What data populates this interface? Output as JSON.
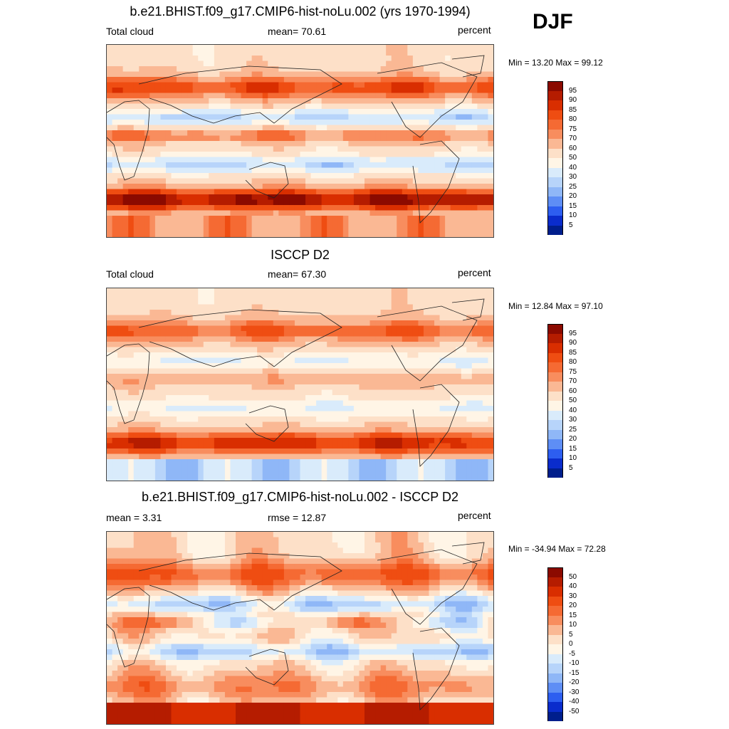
{
  "season": "DJF",
  "panels": [
    {
      "title": "b.e21.BHIST.f09_g17.CMIP6-hist-noLu.002 (yrs 1970-1994)",
      "left_text": "Total cloud",
      "center_text": "mean=  70.61",
      "right_text": "percent",
      "minmax": "Min =  13.20 Max =  99.12",
      "colorbar_labels": [
        "95",
        "90",
        "85",
        "80",
        "75",
        "70",
        "60",
        "50",
        "40",
        "30",
        "25",
        "20",
        "15",
        "10",
        "5"
      ],
      "colorbar_colors": [
        "#8b0a00",
        "#b51c00",
        "#d92e00",
        "#ef4d12",
        "#f56a33",
        "#f88d5e",
        "#fab894",
        "#fde0c8",
        "#fff5e6",
        "#d9ebfb",
        "#b7d4fa",
        "#8fb7f7",
        "#5e8ef5",
        "#2d5ef0",
        "#0a2ccc",
        "#001e8c"
      ],
      "field": "model"
    },
    {
      "title": "ISCCP D2",
      "left_text": "Total cloud",
      "center_text": "mean=  67.30",
      "right_text": "percent",
      "minmax": "Min =  12.84 Max =  97.10",
      "colorbar_labels": [
        "95",
        "90",
        "85",
        "80",
        "75",
        "70",
        "60",
        "50",
        "40",
        "30",
        "25",
        "20",
        "15",
        "10",
        "5"
      ],
      "colorbar_colors": [
        "#8b0a00",
        "#b51c00",
        "#d92e00",
        "#ef4d12",
        "#f56a33",
        "#f88d5e",
        "#fab894",
        "#fde0c8",
        "#fff5e6",
        "#d9ebfb",
        "#b7d4fa",
        "#8fb7f7",
        "#5e8ef5",
        "#2d5ef0",
        "#0a2ccc",
        "#001e8c"
      ],
      "field": "obs"
    },
    {
      "title": "b.e21.BHIST.f09_g17.CMIP6-hist-noLu.002 - ISCCP D2",
      "left_text": "mean =   3.31",
      "center_text": "rmse =  12.87",
      "right_text": "percent",
      "minmax": "Min = -34.94 Max =  72.28",
      "colorbar_labels": [
        "50",
        "40",
        "30",
        "20",
        "15",
        "10",
        "5",
        "0",
        "-5",
        "-10",
        "-15",
        "-20",
        "-30",
        "-40",
        "-50"
      ],
      "colorbar_colors": [
        "#8b0a00",
        "#b51c00",
        "#d92e00",
        "#ef4d12",
        "#f56a33",
        "#f88d5e",
        "#fab894",
        "#fde0c8",
        "#fff5e6",
        "#d9ebfb",
        "#b7d4fa",
        "#8fb7f7",
        "#5e8ef5",
        "#2d5ef0",
        "#0a2ccc",
        "#001e8c"
      ],
      "field": "diff"
    }
  ]
}
